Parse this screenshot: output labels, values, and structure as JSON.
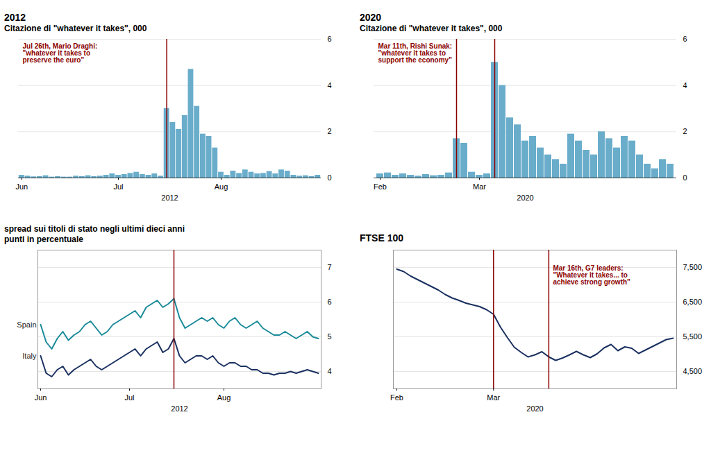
{
  "chart_data": [
    {
      "type": "bar",
      "title": "2012",
      "subtitle": "Citazione di \"whatever it takes\", 000",
      "x_label": "2012",
      "categories": [
        "Jun",
        null,
        null,
        null,
        null,
        null,
        null,
        null,
        null,
        null,
        null,
        null,
        null,
        null,
        null,
        null,
        "Jul",
        null,
        null,
        null,
        null,
        null,
        null,
        null,
        null,
        null,
        null,
        null,
        null,
        null,
        null,
        null,
        null,
        "Aug",
        null,
        null,
        null,
        null,
        null,
        null,
        null,
        null,
        null,
        null,
        null,
        null,
        null,
        null,
        null,
        null
      ],
      "values": [
        0.12,
        0.08,
        0.05,
        0.06,
        0.1,
        0.04,
        0.06,
        0.04,
        0.04,
        0.08,
        0.06,
        0.1,
        0.06,
        0.08,
        0.12,
        0.18,
        0.12,
        0.15,
        0.2,
        0.25,
        0.15,
        0.12,
        0.18,
        0.08,
        3.0,
        2.4,
        2.1,
        2.7,
        4.7,
        3.1,
        1.9,
        1.8,
        1.3,
        0.25,
        0.12,
        0.3,
        0.2,
        0.35,
        0.25,
        0.18,
        0.2,
        0.28,
        0.18,
        0.35,
        0.3,
        0.12,
        0.08,
        0.1,
        0.06,
        0.12
      ],
      "color": "#6aadcb",
      "ylim": [
        0,
        6
      ],
      "yticks": [
        0,
        2,
        4,
        6
      ],
      "grid": true,
      "vlines": [
        24
      ],
      "vline_color": "#8b0000",
      "annotation": [
        "Jul 26th, Mario Draghi:",
        "\"whatever it takes to",
        "preserve the euro\""
      ],
      "annotation_color": "#8b0000"
    },
    {
      "type": "bar",
      "title": "2020",
      "subtitle": "Citazione di \"whatever it takes\", 000",
      "x_label": "2020",
      "categories": [
        "Feb",
        null,
        null,
        null,
        null,
        null,
        null,
        null,
        null,
        null,
        null,
        null,
        null,
        "Mar",
        null,
        null,
        null,
        null,
        null,
        null,
        null,
        null,
        null,
        null,
        null,
        null,
        null,
        null,
        null,
        null,
        null,
        null,
        null,
        null,
        null,
        null,
        null,
        null,
        null
      ],
      "values": [
        0.18,
        0.22,
        0.12,
        0.18,
        0.12,
        0.08,
        0.15,
        0.1,
        0.12,
        0.22,
        1.7,
        1.5,
        0.25,
        0.12,
        0.18,
        5.0,
        4.0,
        2.6,
        2.3,
        1.6,
        1.8,
        1.3,
        1.0,
        0.8,
        0.6,
        1.9,
        1.6,
        1.2,
        1.0,
        2.0,
        1.7,
        1.3,
        1.8,
        1.6,
        1.0,
        0.6,
        0.4,
        0.8,
        0.6
      ],
      "color": "#6aadcb",
      "ylim": [
        0,
        6
      ],
      "yticks": [
        0,
        2,
        4,
        6
      ],
      "grid": true,
      "vlines": [
        10,
        15
      ],
      "vline_color": "#8b0000",
      "annotation": [
        "Mar 11th, Rishi Sunak:",
        "\"whatever it takes to",
        "support the economy\""
      ],
      "annotation_color": "#8b0000"
    },
    {
      "type": "line",
      "title": "spread sui titoli di stato negli ultimi dieci anni\npunti in percentuale",
      "x_label": "2012",
      "categories": [
        "Jun",
        null,
        null,
        null,
        null,
        null,
        null,
        null,
        null,
        null,
        null,
        null,
        null,
        null,
        null,
        null,
        "Jul",
        null,
        null,
        null,
        null,
        null,
        null,
        null,
        null,
        null,
        null,
        null,
        null,
        null,
        null,
        null,
        null,
        "Aug",
        null,
        null,
        null,
        null,
        null,
        null,
        null,
        null,
        null,
        null,
        null,
        null,
        null,
        null,
        null,
        null,
        null
      ],
      "series": [
        {
          "name": "Spain",
          "color": "#1a8a9a",
          "values": [
            5.35,
            4.85,
            4.65,
            4.95,
            5.15,
            4.9,
            5.05,
            5.15,
            5.35,
            5.45,
            5.25,
            5.05,
            5.15,
            5.35,
            5.45,
            5.55,
            5.65,
            5.75,
            5.55,
            5.85,
            5.95,
            6.05,
            5.85,
            5.95,
            6.1,
            5.55,
            5.25,
            5.35,
            5.45,
            5.55,
            5.45,
            5.55,
            5.35,
            5.25,
            5.45,
            5.55,
            5.35,
            5.25,
            5.35,
            5.45,
            5.25,
            5.15,
            5.05,
            5.05,
            5.15,
            5.05,
            4.95,
            5.05,
            5.15,
            5.0,
            4.95
          ]
        },
        {
          "name": "Italy",
          "color": "#1a3060",
          "values": [
            4.45,
            3.95,
            3.85,
            4.05,
            4.15,
            3.9,
            4.05,
            4.15,
            4.25,
            4.35,
            4.15,
            4.05,
            4.15,
            4.25,
            4.35,
            4.45,
            4.55,
            4.65,
            4.45,
            4.65,
            4.75,
            4.85,
            4.55,
            4.65,
            4.95,
            4.45,
            4.25,
            4.35,
            4.45,
            4.45,
            4.35,
            4.45,
            4.25,
            4.15,
            4.25,
            4.25,
            4.15,
            4.15,
            4.05,
            4.05,
            3.95,
            3.95,
            3.9,
            3.95,
            3.95,
            4.0,
            3.95,
            4.0,
            4.05,
            4.0,
            3.95
          ]
        }
      ],
      "ylim": [
        3.5,
        7.5
      ],
      "yticks": [
        4,
        5,
        6,
        7
      ],
      "grid": true,
      "vlines": [
        24
      ],
      "vline_color": "#8b0000"
    },
    {
      "type": "line",
      "title": "FTSE 100",
      "x_label": "2020",
      "categories": [
        "Feb",
        null,
        null,
        null,
        null,
        null,
        null,
        null,
        null,
        null,
        null,
        null,
        null,
        null,
        "Mar",
        null,
        null,
        null,
        null,
        null,
        null,
        null,
        null,
        null,
        null,
        null,
        null,
        null,
        null,
        null,
        null,
        null,
        null,
        null,
        null,
        null,
        null,
        null,
        null,
        null,
        null
      ],
      "series": [
        {
          "name": "FTSE 100",
          "color": "#1a3060",
          "values": [
            7450,
            7380,
            7250,
            7150,
            7050,
            6950,
            6850,
            6720,
            6620,
            6550,
            6470,
            6420,
            6370,
            6280,
            6150,
            5780,
            5480,
            5200,
            5050,
            4920,
            4980,
            5070,
            4920,
            4820,
            4890,
            4980,
            5080,
            4980,
            4900,
            5010,
            5180,
            5280,
            5100,
            5210,
            5170,
            5020,
            5120,
            5220,
            5320,
            5420,
            5460
          ]
        }
      ],
      "ylim": [
        4000,
        8000
      ],
      "yticks": [
        {
          "value": 4500,
          "label": "4,500"
        },
        {
          "value": 5500,
          "label": "5,500"
        },
        {
          "value": 6500,
          "label": "6,500"
        },
        {
          "value": 7500,
          "label": "7,500"
        }
      ],
      "grid": true,
      "vlines": [
        14,
        22
      ],
      "vline_color": "#8b0000",
      "annotation": [
        "Mar 16th, G7 leaders:",
        "\"Whatever it takes... to",
        "achieve strong growth\""
      ],
      "annotation_color": "#8b0000"
    }
  ]
}
